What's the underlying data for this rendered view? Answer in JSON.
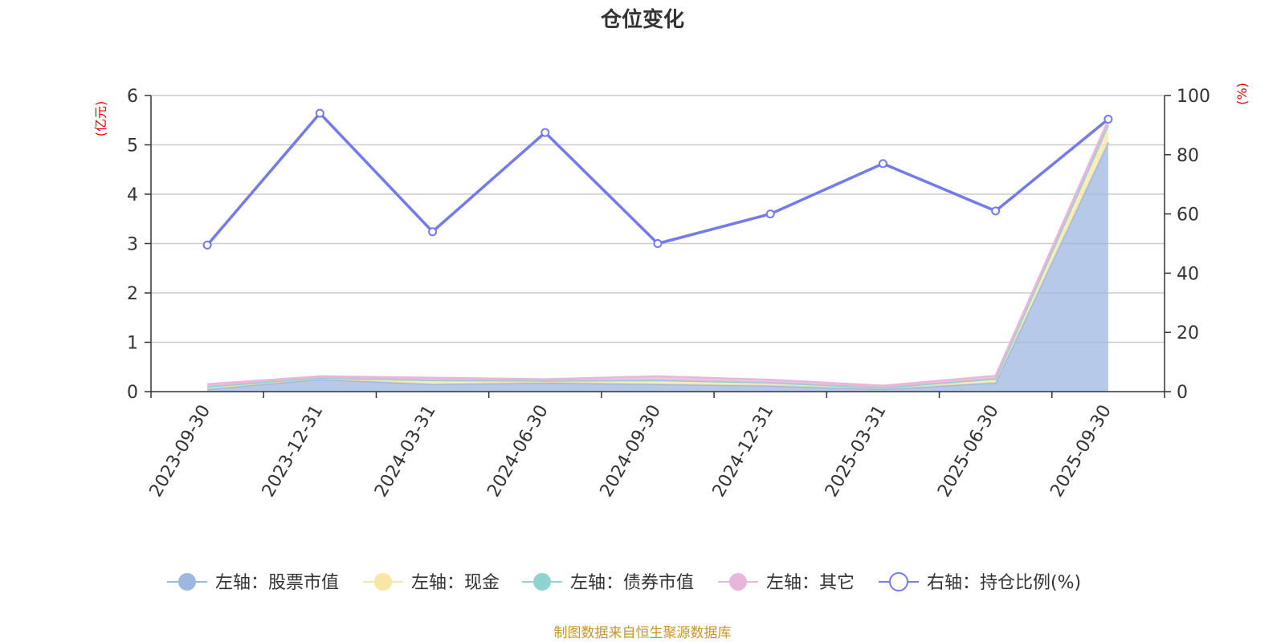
{
  "chart_data": {
    "type": "area",
    "title": "仓位变化",
    "categories": [
      "2023-09-30",
      "2023-12-31",
      "2024-03-31",
      "2024-06-30",
      "2024-09-30",
      "2024-12-31",
      "2025-03-31",
      "2025-06-30",
      "2025-09-30"
    ],
    "left_axis": {
      "unit": "(亿元)",
      "ylim": [
        0,
        6
      ],
      "ticks": [
        "0",
        "1",
        "2",
        "3",
        "4",
        "5",
        "6"
      ]
    },
    "right_axis": {
      "unit": "(%)",
      "ylim": [
        0,
        100
      ],
      "ticks": [
        "0",
        "20",
        "40",
        "60",
        "80",
        "100"
      ]
    },
    "series": [
      {
        "name": "左轴：股票市值",
        "axis": "left",
        "color": "#9db7e1",
        "stack": true,
        "values": [
          0.05,
          0.25,
          0.15,
          0.18,
          0.15,
          0.12,
          0.05,
          0.18,
          5.05
        ]
      },
      {
        "name": "左轴：现金",
        "axis": "left",
        "color": "#f9e6a6",
        "stack": true,
        "values": [
          0.05,
          0.03,
          0.08,
          0.04,
          0.08,
          0.06,
          0.03,
          0.08,
          0.35
        ]
      },
      {
        "name": "左轴：债券市值",
        "axis": "left",
        "color": "#8fd3d1",
        "stack": true,
        "values": [
          0.0,
          0.0,
          0.0,
          0.0,
          0.0,
          0.0,
          0.0,
          0.0,
          0.0
        ]
      },
      {
        "name": "左轴：其它",
        "axis": "left",
        "color": "#e8b6da",
        "stack": true,
        "values": [
          0.05,
          0.03,
          0.05,
          0.03,
          0.08,
          0.06,
          0.04,
          0.06,
          0.1
        ]
      },
      {
        "name": "右轴：持仓比例(%)",
        "axis": "right",
        "color": "#7479ec",
        "stack": false,
        "values": [
          49.5,
          94,
          54,
          87.5,
          50,
          60,
          77,
          61,
          92
        ]
      }
    ],
    "grid": true,
    "legend_position": "bottom"
  },
  "footer": {
    "source": "制图数据来自恒生聚源数据库"
  }
}
